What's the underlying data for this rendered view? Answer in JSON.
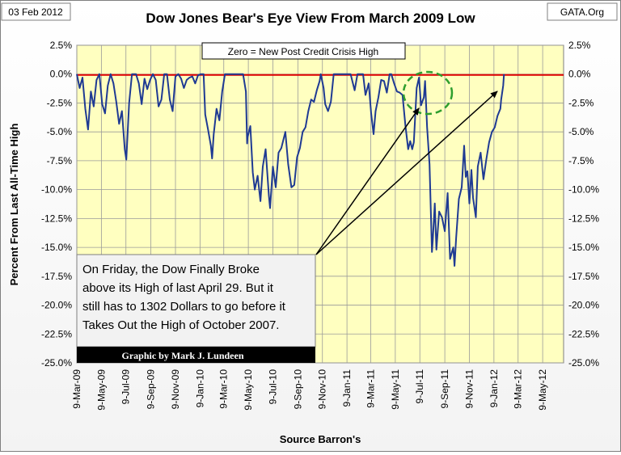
{
  "header": {
    "date": "03 Feb 2012",
    "source_site": "GATA.Org"
  },
  "zero_label": "Zero = New Post Credit Crisis High",
  "annotation": {
    "lines": [
      "On Friday, the Dow Finally Broke",
      "above its High of last April 29.  But it",
      "still has to 1302 Dollars to go before  it",
      "Takes Out the High of October 2007."
    ]
  },
  "credit": "Graphic by Mark J. Lundeen",
  "colors": {
    "plot_bg": "#ffffc0",
    "series": "#1f3a93",
    "zero_line": "#e00000",
    "highlight_circle": "#2e9e2e"
  },
  "chart_data": {
    "type": "line",
    "title": "Dow Jones Bear's Eye View From March 2009 Low",
    "xlabel": "Source Barron's",
    "ylabel": "Percent From Last All-Time High",
    "ylim": [
      -25,
      2.5
    ],
    "xlim": [
      "2009-03-09",
      "2012-06-30"
    ],
    "grid": true,
    "y_ticks": [
      "2.5%",
      "0.0%",
      "-2.5%",
      "-5.0%",
      "-7.5%",
      "-10.0%",
      "-12.5%",
      "-15.0%",
      "-17.5%",
      "-20.0%",
      "-22.5%",
      "-25.0%"
    ],
    "x_ticks": [
      "9-Mar-09",
      "9-May-09",
      "9-Jul-09",
      "9-Sep-09",
      "9-Nov-09",
      "9-Jan-10",
      "9-Mar-10",
      "9-May-10",
      "9-Jul-10",
      "9-Sep-10",
      "9-Nov-10",
      "9-Jan-11",
      "9-Mar-11",
      "9-May-11",
      "9-Jul-11",
      "9-Sep-11",
      "9-Nov-11",
      "9-Jan-12",
      "9-Mar-12",
      "9-May-12"
    ],
    "series": [
      {
        "values": [
          [
            "2009-03-09",
            0
          ],
          [
            "2009-03-16",
            -1.2
          ],
          [
            "2009-03-23",
            -0.3
          ],
          [
            "2009-03-30",
            -3.0
          ],
          [
            "2009-04-06",
            -4.8
          ],
          [
            "2009-04-13",
            -1.5
          ],
          [
            "2009-04-20",
            -2.8
          ],
          [
            "2009-04-27",
            -0.5
          ],
          [
            "2009-05-04",
            0
          ],
          [
            "2009-05-11",
            -2.6
          ],
          [
            "2009-05-18",
            -3.4
          ],
          [
            "2009-05-25",
            -1.0
          ],
          [
            "2009-06-01",
            0
          ],
          [
            "2009-06-08",
            -0.8
          ],
          [
            "2009-06-15",
            -2.4
          ],
          [
            "2009-06-22",
            -4.3
          ],
          [
            "2009-06-29",
            -3.2
          ],
          [
            "2009-07-06",
            -6.5
          ],
          [
            "2009-07-10",
            -7.4
          ],
          [
            "2009-07-17",
            -2.5
          ],
          [
            "2009-07-24",
            0
          ],
          [
            "2009-08-03",
            0
          ],
          [
            "2009-08-10",
            -0.8
          ],
          [
            "2009-08-17",
            -2.6
          ],
          [
            "2009-08-24",
            -0.4
          ],
          [
            "2009-08-31",
            -1.3
          ],
          [
            "2009-09-07",
            -0.5
          ],
          [
            "2009-09-14",
            0
          ],
          [
            "2009-09-21",
            -0.5
          ],
          [
            "2009-09-28",
            -2.8
          ],
          [
            "2009-10-05",
            -2.2
          ],
          [
            "2009-10-12",
            0
          ],
          [
            "2009-10-19",
            0
          ],
          [
            "2009-10-26",
            -2.2
          ],
          [
            "2009-11-02",
            -3.2
          ],
          [
            "2009-11-09",
            -0.2
          ],
          [
            "2009-11-16",
            0
          ],
          [
            "2009-11-23",
            -0.4
          ],
          [
            "2009-11-30",
            -1.2
          ],
          [
            "2009-12-07",
            -0.5
          ],
          [
            "2009-12-14",
            -0.3
          ],
          [
            "2009-12-21",
            -0.2
          ],
          [
            "2009-12-28",
            -0.8
          ],
          [
            "2010-01-04",
            -0.1
          ],
          [
            "2010-01-11",
            0
          ],
          [
            "2010-01-18",
            0
          ],
          [
            "2010-01-22",
            -3.5
          ],
          [
            "2010-01-29",
            -4.8
          ],
          [
            "2010-02-05",
            -6.2
          ],
          [
            "2010-02-08",
            -7.3
          ],
          [
            "2010-02-12",
            -5.2
          ],
          [
            "2010-02-19",
            -3.0
          ],
          [
            "2010-02-26",
            -4.0
          ],
          [
            "2010-03-05",
            -1.5
          ],
          [
            "2010-03-12",
            0
          ],
          [
            "2010-03-19",
            0
          ],
          [
            "2010-03-26",
            0
          ],
          [
            "2010-04-05",
            0
          ],
          [
            "2010-04-12",
            0
          ],
          [
            "2010-04-19",
            0
          ],
          [
            "2010-04-26",
            0
          ],
          [
            "2010-05-03",
            -1.5
          ],
          [
            "2010-05-06",
            -6.0
          ],
          [
            "2010-05-07",
            -5.5
          ],
          [
            "2010-05-14",
            -4.5
          ],
          [
            "2010-05-20",
            -8.5
          ],
          [
            "2010-05-25",
            -10.0
          ],
          [
            "2010-06-01",
            -8.8
          ],
          [
            "2010-06-08",
            -11.0
          ],
          [
            "2010-06-14",
            -8.0
          ],
          [
            "2010-06-21",
            -6.5
          ],
          [
            "2010-06-29",
            -10.5
          ],
          [
            "2010-07-02",
            -11.6
          ],
          [
            "2010-07-09",
            -8.0
          ],
          [
            "2010-07-16",
            -9.8
          ],
          [
            "2010-07-23",
            -6.8
          ],
          [
            "2010-07-30",
            -6.4
          ],
          [
            "2010-08-09",
            -5.0
          ],
          [
            "2010-08-16",
            -7.8
          ],
          [
            "2010-08-24",
            -9.8
          ],
          [
            "2010-08-31",
            -9.6
          ],
          [
            "2010-09-07",
            -7.2
          ],
          [
            "2010-09-14",
            -6.4
          ],
          [
            "2010-09-21",
            -5.0
          ],
          [
            "2010-09-28",
            -4.6
          ],
          [
            "2010-10-05",
            -3.2
          ],
          [
            "2010-10-12",
            -2.2
          ],
          [
            "2010-10-19",
            -2.4
          ],
          [
            "2010-10-26",
            -1.4
          ],
          [
            "2010-11-02",
            -0.6
          ],
          [
            "2010-11-05",
            0
          ],
          [
            "2010-11-12",
            -1.2
          ],
          [
            "2010-11-16",
            -2.6
          ],
          [
            "2010-11-23",
            -3.2
          ],
          [
            "2010-11-30",
            -2.4
          ],
          [
            "2010-12-07",
            0
          ],
          [
            "2010-12-14",
            0
          ],
          [
            "2010-12-21",
            0
          ],
          [
            "2010-12-28",
            0
          ],
          [
            "2011-01-04",
            0
          ],
          [
            "2011-01-11",
            0
          ],
          [
            "2011-01-18",
            0
          ],
          [
            "2011-01-28",
            -1.4
          ],
          [
            "2011-02-04",
            0
          ],
          [
            "2011-02-11",
            0
          ],
          [
            "2011-02-18",
            0
          ],
          [
            "2011-02-24",
            -1.8
          ],
          [
            "2011-03-04",
            -0.8
          ],
          [
            "2011-03-10",
            -3.4
          ],
          [
            "2011-03-16",
            -5.2
          ],
          [
            "2011-03-21",
            -3.2
          ],
          [
            "2011-03-28",
            -2.0
          ],
          [
            "2011-04-04",
            -0.5
          ],
          [
            "2011-04-11",
            -0.6
          ],
          [
            "2011-04-18",
            -1.6
          ],
          [
            "2011-04-25",
            0
          ],
          [
            "2011-04-29",
            0
          ],
          [
            "2011-05-06",
            -0.8
          ],
          [
            "2011-05-13",
            -1.5
          ],
          [
            "2011-05-20",
            -1.6
          ],
          [
            "2011-05-27",
            -1.8
          ],
          [
            "2011-06-03",
            -4.4
          ],
          [
            "2011-06-10",
            -6.5
          ],
          [
            "2011-06-15",
            -5.8
          ],
          [
            "2011-06-20",
            -6.5
          ],
          [
            "2011-06-24",
            -5.9
          ],
          [
            "2011-07-01",
            -1.2
          ],
          [
            "2011-07-07",
            -0.3
          ],
          [
            "2011-07-12",
            -2.7
          ],
          [
            "2011-07-19",
            -2.0
          ],
          [
            "2011-07-22",
            -0.6
          ],
          [
            "2011-07-27",
            -4.6
          ],
          [
            "2011-08-02",
            -7.8
          ],
          [
            "2011-08-08",
            -15.4
          ],
          [
            "2011-08-10",
            -14.4
          ],
          [
            "2011-08-15",
            -11.2
          ],
          [
            "2011-08-19",
            -15.2
          ],
          [
            "2011-08-26",
            -11.9
          ],
          [
            "2011-09-02",
            -12.4
          ],
          [
            "2011-09-09",
            -13.6
          ],
          [
            "2011-09-16",
            -10.3
          ],
          [
            "2011-09-22",
            -16.0
          ],
          [
            "2011-09-30",
            -15.0
          ],
          [
            "2011-10-03",
            -16.6
          ],
          [
            "2011-10-07",
            -14.2
          ],
          [
            "2011-10-14",
            -10.8
          ],
          [
            "2011-10-21",
            -9.8
          ],
          [
            "2011-10-27",
            -6.2
          ],
          [
            "2011-10-31",
            -8.9
          ],
          [
            "2011-11-04",
            -8.4
          ],
          [
            "2011-11-09",
            -11.2
          ],
          [
            "2011-11-14",
            -8.3
          ],
          [
            "2011-11-18",
            -10.7
          ],
          [
            "2011-11-25",
            -12.4
          ],
          [
            "2011-11-30",
            -8.0
          ],
          [
            "2011-12-07",
            -6.8
          ],
          [
            "2011-12-14",
            -9.1
          ],
          [
            "2011-12-21",
            -7.4
          ],
          [
            "2011-12-28",
            -5.9
          ],
          [
            "2012-01-04",
            -5.0
          ],
          [
            "2012-01-11",
            -4.6
          ],
          [
            "2012-01-18",
            -3.6
          ],
          [
            "2012-01-25",
            -3.0
          ],
          [
            "2012-01-27",
            -2.2
          ],
          [
            "2012-02-01",
            -1.0
          ],
          [
            "2012-02-03",
            0
          ]
        ]
      }
    ]
  }
}
